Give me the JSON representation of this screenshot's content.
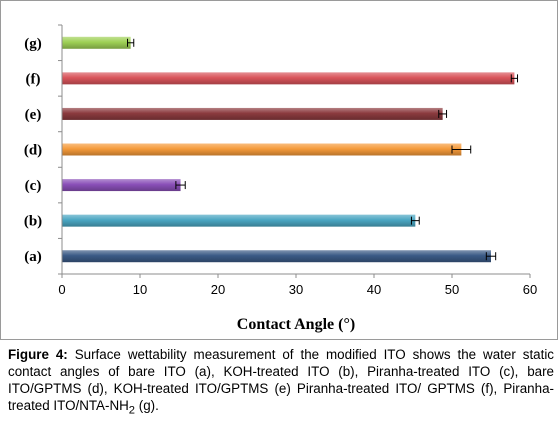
{
  "chart_data": {
    "type": "bar",
    "orientation": "horizontal",
    "categories": [
      "(a)",
      "(b)",
      "(c)",
      "(d)",
      "(e)",
      "(f)",
      "(g)"
    ],
    "values": [
      55,
      45.3,
      15.2,
      51.2,
      48.8,
      58,
      8.8
    ],
    "errors": [
      0.6,
      0.5,
      0.6,
      1.2,
      0.5,
      0.4,
      0.4
    ],
    "colors": [
      "#3b5a86",
      "#4aa6c2",
      "#8a4fb8",
      "#f59a3a",
      "#8b3a3e",
      "#d9545a",
      "#9ed055"
    ],
    "xlabel": "Contact Angle (°)",
    "xlim": [
      0,
      60
    ],
    "xticks": [
      0,
      10,
      20,
      30,
      40,
      50,
      60
    ],
    "grid": false,
    "legend": "none"
  },
  "caption": {
    "label": "Figure 4:",
    "text_before_sub": " Surface wettability measurement of the modified ITO shows the water static contact angles of bare ITO (a), KOH-treated ITO (b), Piranha-treated ITO (c), bare ITO/GPTMS (d), KOH-treated ITO/GPTMS (e) Piranha-treated ITO/ GPTMS (f), Piranha-treated ITO/NTA-NH",
    "subscript": "2",
    "text_after_sub": " (g)."
  }
}
